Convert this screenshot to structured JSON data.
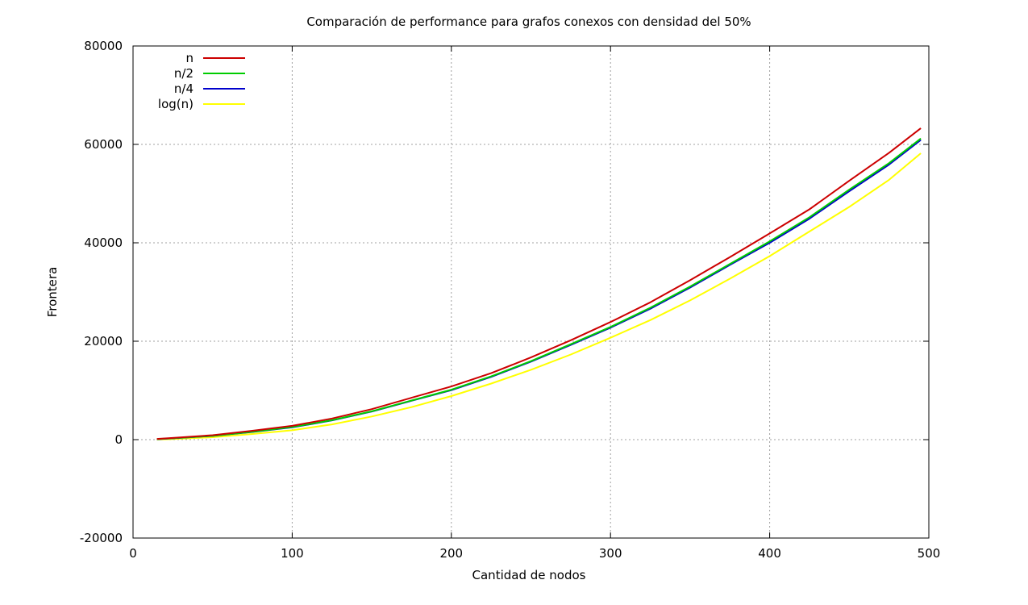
{
  "chart_data": {
    "type": "line",
    "title": "Comparación de performance para grafos conexos con densidad del 50%",
    "xlabel": "Cantidad de nodos",
    "ylabel": "Frontera",
    "xlim": [
      0,
      500
    ],
    "ylim": [
      -20000,
      80000
    ],
    "xticks": [
      0,
      100,
      200,
      300,
      400,
      500
    ],
    "yticks": [
      -20000,
      0,
      20000,
      40000,
      60000,
      80000
    ],
    "grid": true,
    "legend_position": "top-left",
    "x": [
      15,
      25,
      50,
      75,
      100,
      125,
      150,
      175,
      200,
      225,
      250,
      275,
      300,
      325,
      350,
      375,
      400,
      425,
      450,
      475,
      495
    ],
    "series": [
      {
        "name": "n",
        "color": "#cc0000",
        "values": [
          150,
          350,
          900,
          1800,
          2800,
          4300,
          6200,
          8500,
          10800,
          13500,
          16700,
          20200,
          23900,
          27900,
          32400,
          37100,
          41900,
          46800,
          52600,
          58300,
          63300
        ]
      },
      {
        "name": "n/2",
        "color": "#00cc00",
        "values": [
          100,
          280,
          780,
          1600,
          2550,
          3950,
          5750,
          7950,
          10150,
          12850,
          15950,
          19400,
          22900,
          26800,
          31100,
          35700,
          40300,
          45200,
          50800,
          56200,
          61200
        ]
      },
      {
        "name": "n/4",
        "color": "#0000cc",
        "values": [
          90,
          260,
          760,
          1550,
          2500,
          3900,
          5700,
          7900,
          10050,
          12750,
          15850,
          19250,
          22750,
          26600,
          30900,
          35500,
          40000,
          44900,
          50500,
          55900,
          60900
        ]
      },
      {
        "name": "log(n)",
        "color": "#ffff00",
        "values": [
          20,
          120,
          500,
          1150,
          1900,
          3100,
          4700,
          6600,
          8850,
          11400,
          14200,
          17300,
          20700,
          24300,
          28300,
          32700,
          37300,
          42300,
          47300,
          52800,
          58200
        ]
      }
    ]
  }
}
